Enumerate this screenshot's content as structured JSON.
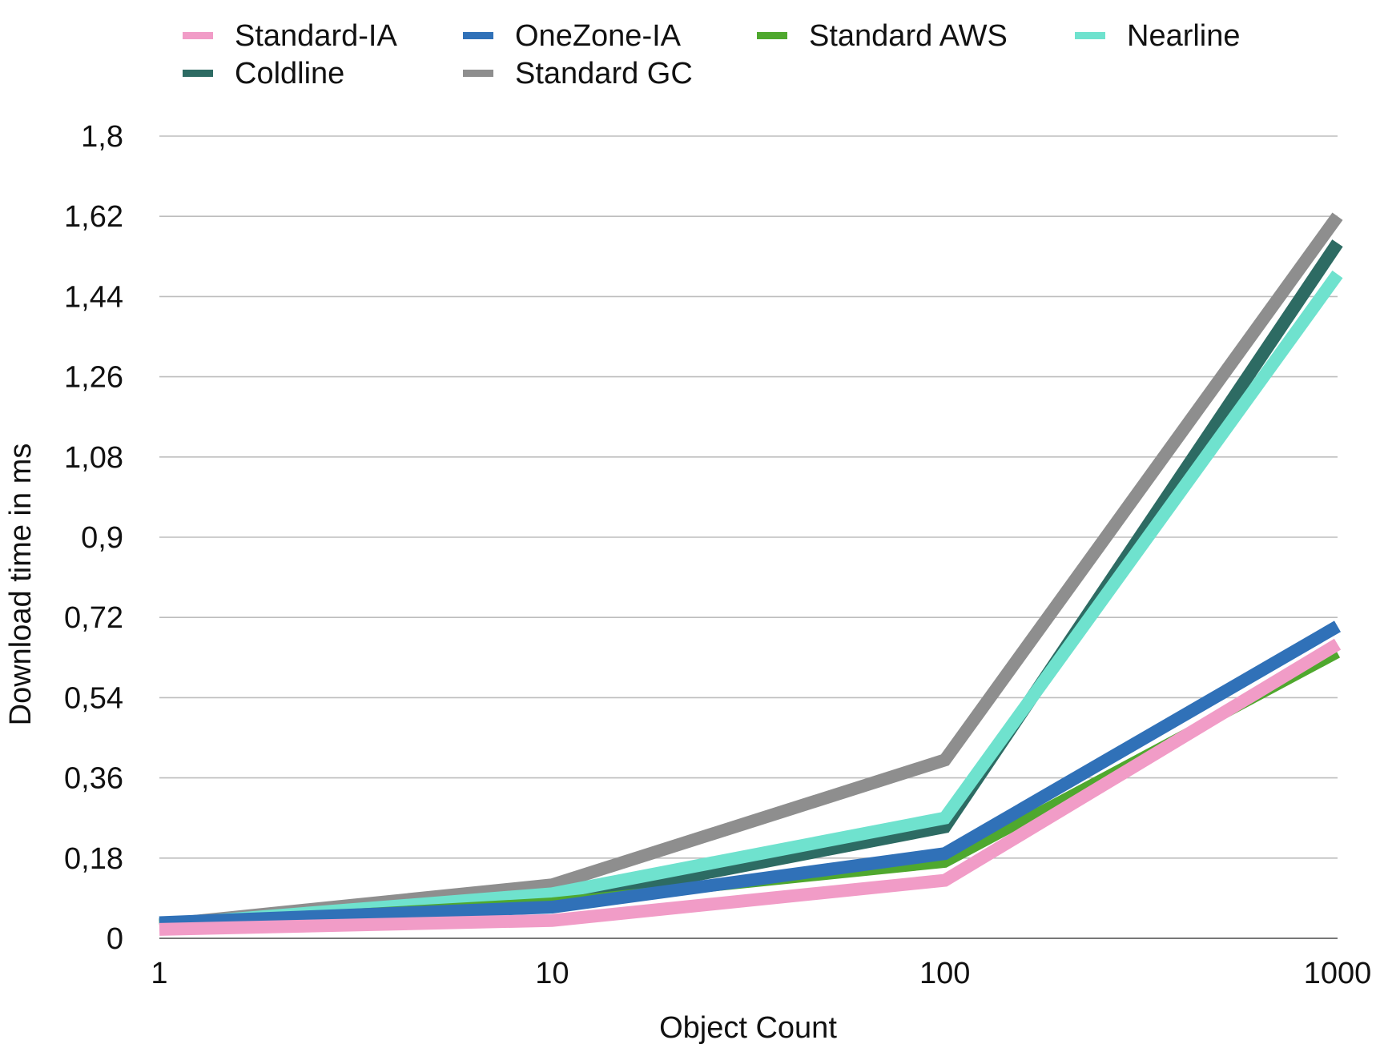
{
  "chart_data": {
    "type": "line",
    "title": "",
    "xlabel": "Object Count",
    "ylabel": "Download time in ms",
    "x": [
      1,
      10,
      100,
      1000
    ],
    "xscale": "log",
    "xticks": [
      "1",
      "10",
      "100",
      "1000"
    ],
    "ylim": [
      0,
      1.8
    ],
    "yticks": [
      0,
      0.18,
      0.36,
      0.54,
      0.72,
      0.9,
      1.08,
      1.26,
      1.44,
      1.62,
      1.8
    ],
    "ytick_labels": [
      "0",
      "0,18",
      "0,36",
      "0,54",
      "0,72",
      "0,9",
      "1,08",
      "1,26",
      "1,44",
      "1,62",
      "1,8"
    ],
    "grid": true,
    "legend_position": "top",
    "series": [
      {
        "name": "Standard-IA",
        "color": "#F19CC7",
        "values": [
          0.02,
          0.04,
          0.13,
          0.66
        ]
      },
      {
        "name": "OneZone-IA",
        "color": "#3071B8",
        "values": [
          0.035,
          0.07,
          0.19,
          0.7
        ]
      },
      {
        "name": "Standard AWS",
        "color": "#4FA82E",
        "values": [
          0.03,
          0.08,
          0.17,
          0.64
        ]
      },
      {
        "name": "Nearline",
        "color": "#6FE2CE",
        "values": [
          0.03,
          0.1,
          0.27,
          1.49
        ]
      },
      {
        "name": "Coldline",
        "color": "#2D6B63",
        "values": [
          0.03,
          0.08,
          0.25,
          1.56
        ]
      },
      {
        "name": "Standard GC",
        "color": "#8E8E8E",
        "values": [
          0.03,
          0.12,
          0.4,
          1.62
        ]
      }
    ],
    "draw_order": [
      "Standard GC",
      "Coldline",
      "Nearline",
      "Standard AWS",
      "OneZone-IA",
      "Standard-IA"
    ],
    "legend_rows": [
      [
        "Standard-IA",
        "OneZone-IA",
        "Standard AWS",
        "Nearline"
      ],
      [
        "Coldline",
        "Standard GC"
      ]
    ]
  }
}
